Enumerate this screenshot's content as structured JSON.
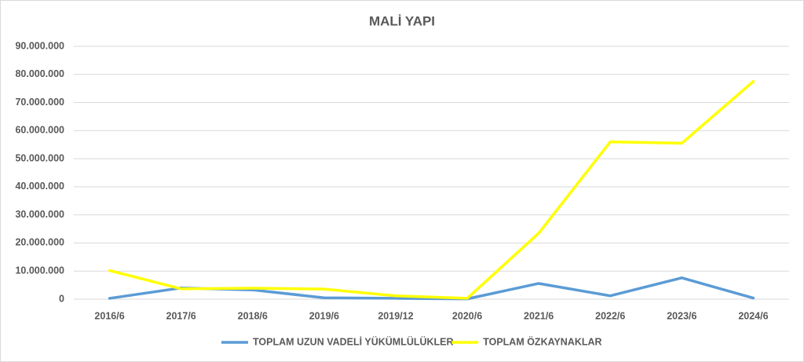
{
  "chart_data": {
    "type": "line",
    "title": "MALİ YAPI",
    "categories": [
      "2016/6",
      "2017/6",
      "2018/6",
      "2019/6",
      "2019/12",
      "2020/6",
      "2021/6",
      "2022/6",
      "2023/6",
      "2024/6"
    ],
    "series": [
      {
        "name": "TOPLAM UZUN VADELİ YÜKÜMLÜLÜKLER",
        "color": "#5b9bd5",
        "values": [
          300000,
          4000000,
          3300000,
          500000,
          300000,
          100000,
          5600000,
          1200000,
          7600000,
          400000
        ]
      },
      {
        "name": "TOPLAM ÖZKAYNAKLAR",
        "color": "#ffff00",
        "values": [
          10200000,
          3700000,
          3900000,
          3600000,
          1200000,
          300000,
          23500000,
          56000000,
          55500000,
          77500000
        ]
      }
    ],
    "ylim": [
      0,
      90000000
    ],
    "yticks": [
      0,
      {
        "value": 10000000,
        "label": "10.000.000"
      },
      {
        "value": 20000000,
        "label": "20.000.000"
      },
      {
        "value": 30000000,
        "label": "30.000.000"
      },
      {
        "value": 40000000,
        "label": "40.000.000"
      },
      {
        "value": 50000000,
        "label": "50.000.000"
      },
      {
        "value": 60000000,
        "label": "60.000.000"
      },
      {
        "value": 70000000,
        "label": "70.000.000"
      },
      {
        "value": 80000000,
        "label": "80.000.000"
      },
      {
        "value": 90000000,
        "label": "90.000.000"
      }
    ],
    "grid": true,
    "legend": "bottom"
  }
}
